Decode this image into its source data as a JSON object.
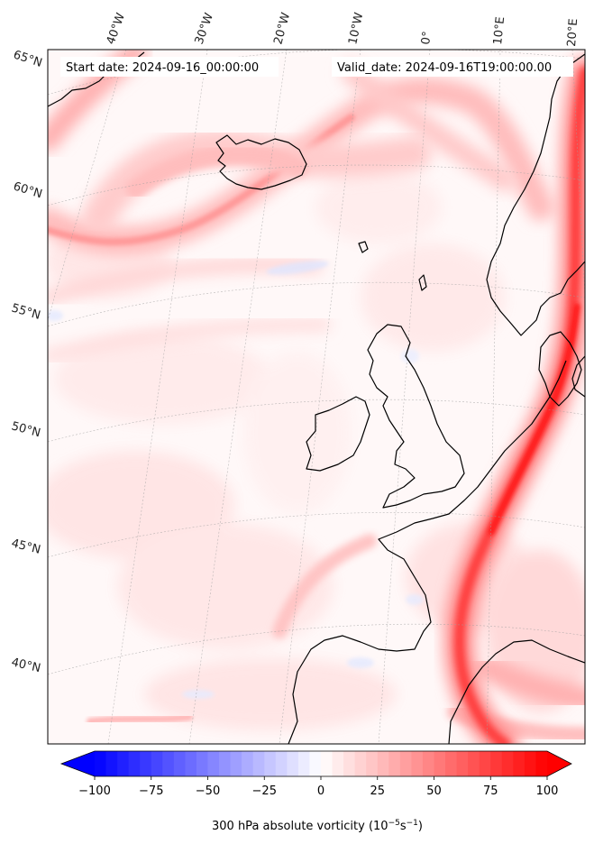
{
  "header": {
    "start_date": "Start date: 2024-09-16_00:00:00",
    "valid_date": "Valid_date: 2024-09-16T19:00:00.00"
  },
  "longitude_labels": [
    "40°W",
    "30°W",
    "20°W",
    "10°W",
    "0°",
    "10°E",
    "20°E"
  ],
  "latitude_labels": [
    "65°N",
    "60°N",
    "55°N",
    "50°N",
    "45°N",
    "40°N"
  ],
  "colorbar": {
    "min": -100,
    "max": 100,
    "ticks": [
      "−100",
      "−75",
      "−50",
      "−25",
      "0",
      "25",
      "50",
      "75",
      "100"
    ],
    "tick_values": [
      -100,
      -75,
      -50,
      -25,
      0,
      25,
      50,
      75,
      100
    ],
    "label_main": "300 hPa absolute vorticity (10",
    "label_exp1": "−5",
    "label_mid": "s",
    "label_exp2": "−1",
    "label_end": ")",
    "low_color": "#0000ff",
    "mid_color": "#ffffff",
    "high_color": "#ff0000",
    "extend": "both"
  }
}
